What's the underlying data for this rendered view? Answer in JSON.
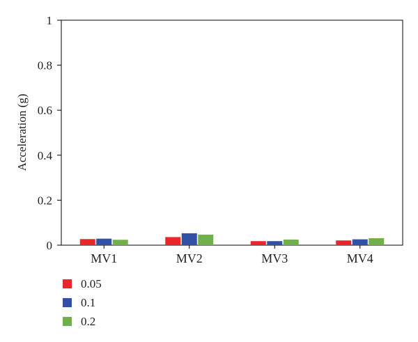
{
  "chart_data": {
    "type": "bar",
    "categories": [
      "MV1",
      "MV2",
      "MV3",
      "MV4"
    ],
    "series": [
      {
        "name": "0.05",
        "color": "#e8262b",
        "values": [
          0.027,
          0.036,
          0.018,
          0.021
        ]
      },
      {
        "name": "0.1",
        "color": "#3350a7",
        "values": [
          0.029,
          0.053,
          0.018,
          0.026
        ]
      },
      {
        "name": "0.2",
        "color": "#6fb04a",
        "values": [
          0.024,
          0.047,
          0.025,
          0.031
        ]
      }
    ],
    "title": "",
    "xlabel": "",
    "ylabel": "Acceleration (g)",
    "ylim": [
      0,
      1
    ],
    "yticks": [
      0,
      0.2,
      0.4,
      0.6,
      0.8,
      1
    ],
    "ytick_labels": [
      "0",
      "0.2",
      "0.4",
      "0.6",
      "0.8",
      "1"
    ],
    "grid": false,
    "legend_position": "bottom-left"
  }
}
